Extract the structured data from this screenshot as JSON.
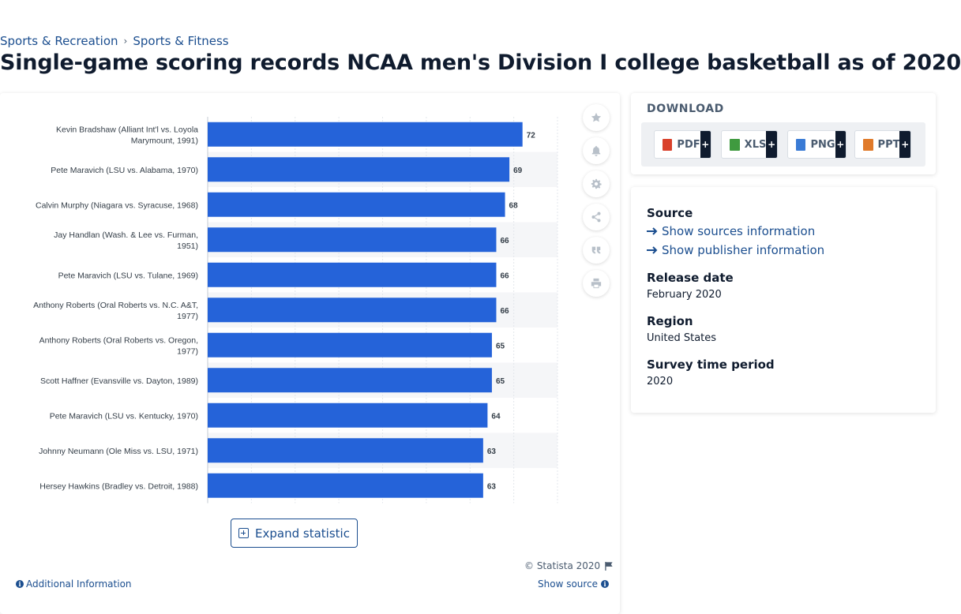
{
  "breadcrumb": {
    "items": [
      "Sports & Recreation",
      "Sports & Fitness"
    ],
    "separator": "›"
  },
  "page_title": "Single-game scoring records NCAA men's Division I college basketball as of 2020",
  "colors": {
    "bar": "#2563d9",
    "accent": "#1b4e8f",
    "dark": "#0f1b2e"
  },
  "toolbar": {
    "icons": [
      "star-icon",
      "bell-icon",
      "gear-icon",
      "share-icon",
      "quote-icon",
      "print-icon"
    ]
  },
  "chart_data": {
    "type": "bar",
    "orientation": "horizontal",
    "categories": [
      [
        "Kevin Bradshaw (Alliant Int'l vs. Loyola",
        "Marymount, 1991)"
      ],
      [
        "Pete Maravich (LSU vs. Alabama, 1970)"
      ],
      [
        "Calvin Murphy (Niagara vs. Syracuse, 1968)"
      ],
      [
        "Jay Handlan (Wash. & Lee vs. Furman,",
        "1951)"
      ],
      [
        "Pete Maravich (LSU vs. Tulane, 1969)"
      ],
      [
        "Anthony Roberts (Oral Roberts vs. N.C. A&T,",
        "1977)"
      ],
      [
        "Anthony Roberts (Oral Roberts vs. Oregon,",
        "1977)"
      ],
      [
        "Scott Haffner (Evansville vs. Dayton, 1989)"
      ],
      [
        "Pete Maravich (LSU vs. Kentucky, 1970)"
      ],
      [
        "Johnny Neumann (Ole Miss vs. LSU, 1971)"
      ],
      [
        "Hersey Hawkins (Bradley vs. Detroit, 1988)"
      ]
    ],
    "values": [
      72,
      69,
      68,
      66,
      66,
      66,
      65,
      65,
      64,
      63,
      63
    ],
    "xlim": [
      0,
      80
    ],
    "grid": true,
    "legend": "none",
    "data_labels": true
  },
  "actions": {
    "expand_label": "Expand statistic",
    "copyright": "© Statista 2020",
    "additional_info": "Additional Information",
    "show_source": "Show source"
  },
  "download": {
    "title": "DOWNLOAD",
    "buttons": [
      {
        "label": "PDF",
        "icon": "pdf-file-icon",
        "color": "#d9412b"
      },
      {
        "label": "XLS",
        "icon": "xls-file-icon",
        "color": "#3f9a3f"
      },
      {
        "label": "PNG",
        "icon": "png-file-icon",
        "color": "#3a7bd5"
      },
      {
        "label": "PPT",
        "icon": "ppt-file-icon",
        "color": "#e07a2a"
      }
    ],
    "plus": "+"
  },
  "meta": {
    "source_heading": "Source",
    "show_sources": "Show sources information",
    "show_publisher": "Show publisher information",
    "release_heading": "Release date",
    "release_value": "February 2020",
    "region_heading": "Region",
    "region_value": "United States",
    "survey_heading": "Survey time period",
    "survey_value": "2020"
  }
}
